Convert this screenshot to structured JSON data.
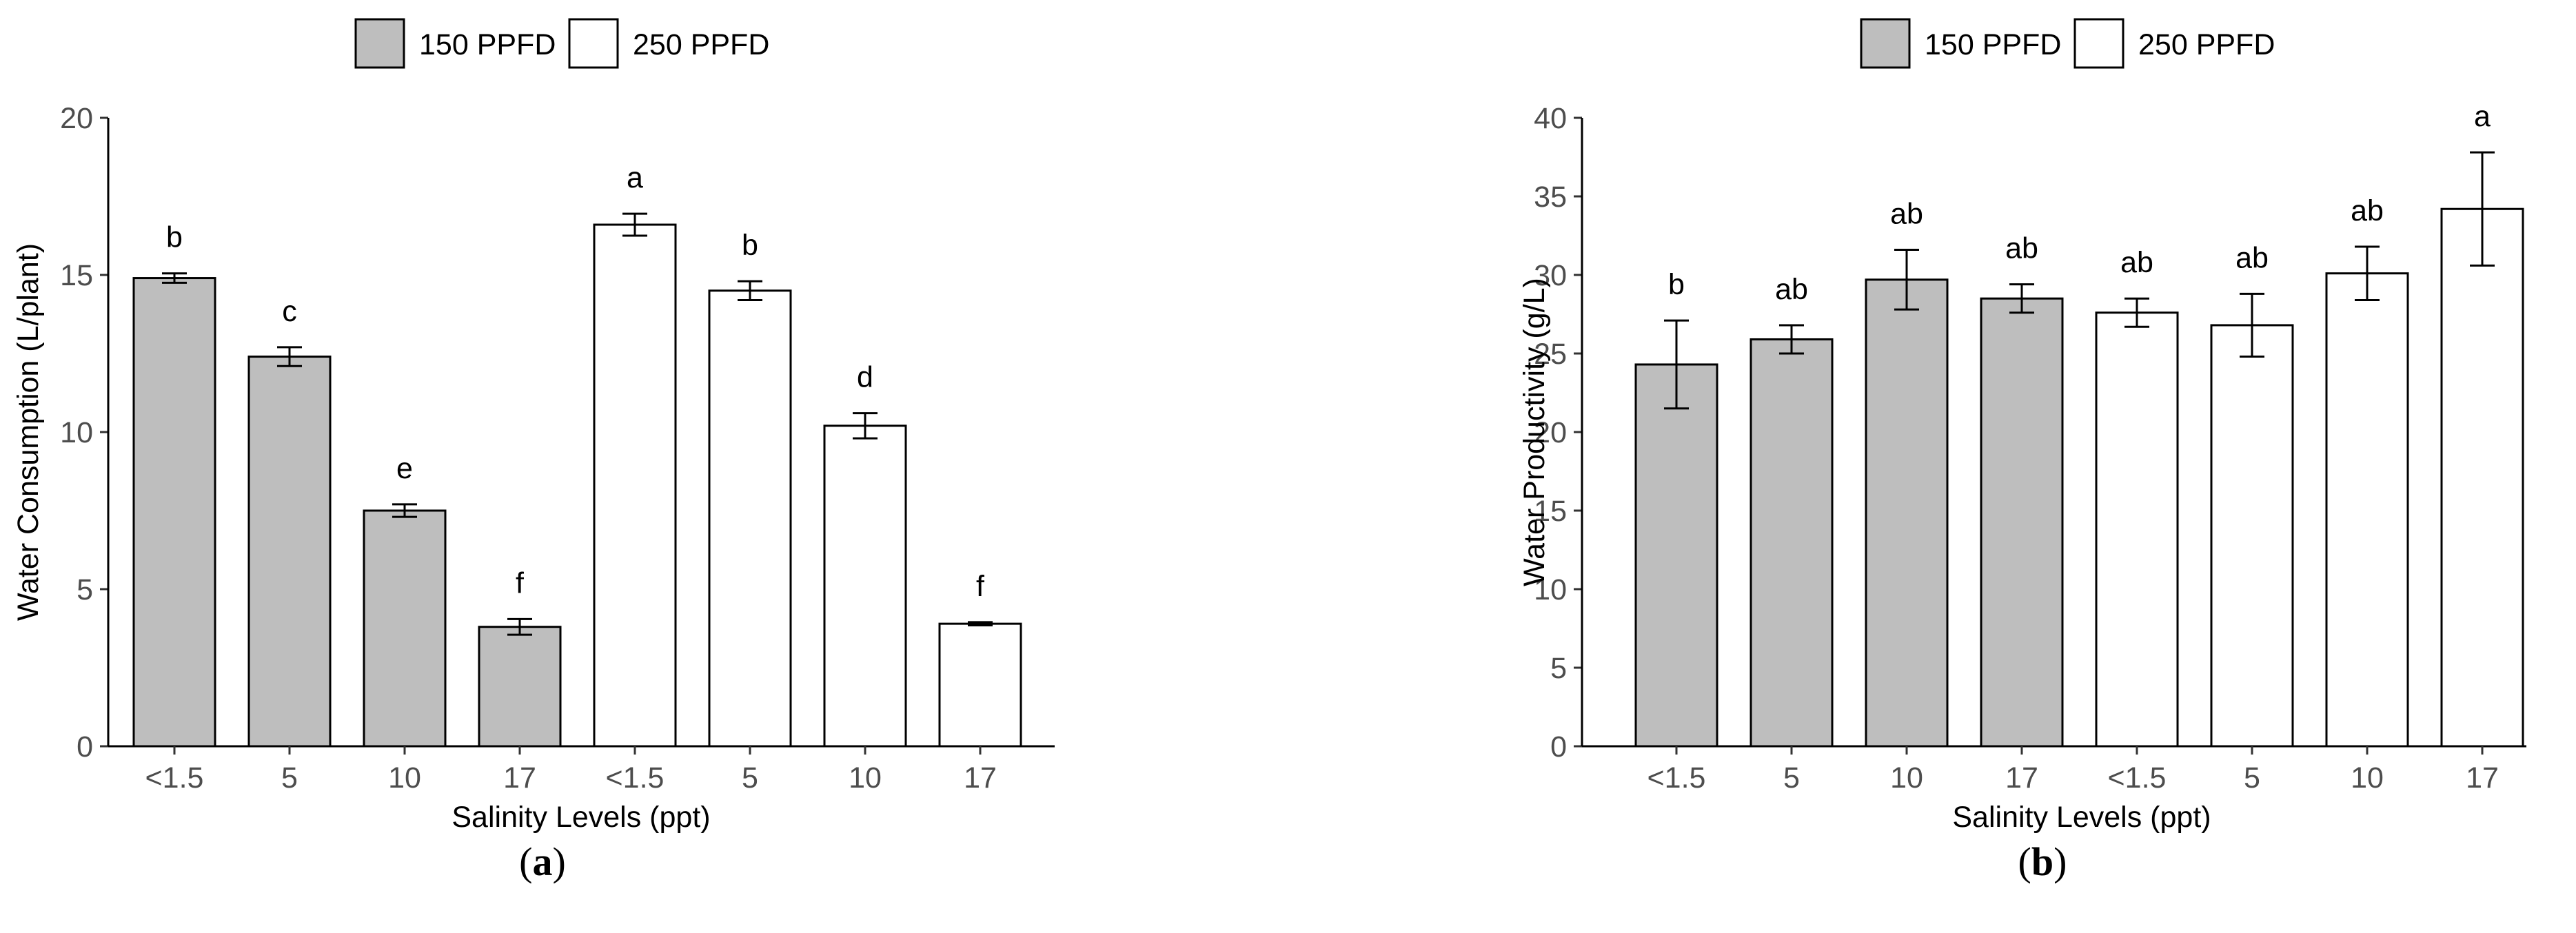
{
  "chart_data": [
    {
      "type": "bar",
      "panel_label": "a",
      "categories": [
        "<1.5",
        "5",
        "10",
        "17",
        "<1.5",
        "5",
        "10",
        "17"
      ],
      "legend": {
        "position": "top",
        "items": [
          {
            "label": "150 PPFD",
            "color": "#bebebe"
          },
          {
            "label": "250 PPFD",
            "color": "#ffffff"
          }
        ]
      },
      "bar_groups": [
        "150 PPFD",
        "150 PPFD",
        "150 PPFD",
        "150 PPFD",
        "250 PPFD",
        "250 PPFD",
        "250 PPFD",
        "250 PPFD"
      ],
      "values": [
        14.9,
        12.4,
        7.5,
        3.8,
        16.6,
        14.5,
        10.2,
        3.9
      ],
      "errors": [
        0.15,
        0.3,
        0.2,
        0.25,
        0.35,
        0.3,
        0.4,
        0.05
      ],
      "letters": [
        "b",
        "c",
        "e",
        "f",
        "a",
        "b",
        "d",
        "f"
      ],
      "xlabel": "Salinity Levels (ppt)",
      "ylabel": "Water Consumption (L/plant)",
      "ylim": [
        0,
        20
      ],
      "yticks": [
        0,
        5,
        10,
        15,
        20
      ],
      "grid": false
    },
    {
      "type": "bar",
      "panel_label": "b",
      "categories": [
        "<1.5",
        "5",
        "10",
        "17",
        "<1.5",
        "5",
        "10",
        "17"
      ],
      "legend": {
        "position": "top",
        "items": [
          {
            "label": "150 PPFD",
            "color": "#bebebe"
          },
          {
            "label": "250 PPFD",
            "color": "#ffffff"
          }
        ]
      },
      "bar_groups": [
        "150 PPFD",
        "150 PPFD",
        "150 PPFD",
        "150 PPFD",
        "250 PPFD",
        "250 PPFD",
        "250 PPFD",
        "250 PPFD"
      ],
      "values": [
        24.3,
        25.9,
        29.7,
        28.5,
        27.6,
        26.8,
        30.1,
        34.2
      ],
      "errors": [
        2.8,
        0.9,
        1.9,
        0.9,
        0.9,
        2.0,
        1.7,
        3.6
      ],
      "letters": [
        "b",
        "ab",
        "ab",
        "ab",
        "ab",
        "ab",
        "ab",
        "a"
      ],
      "xlabel": "Salinity Levels (ppt)",
      "ylabel": "Water Productivity (g/L)",
      "ylim": [
        0,
        40
      ],
      "yticks": [
        0,
        5,
        10,
        15,
        20,
        25,
        30,
        35,
        40
      ],
      "grid": false
    }
  ]
}
